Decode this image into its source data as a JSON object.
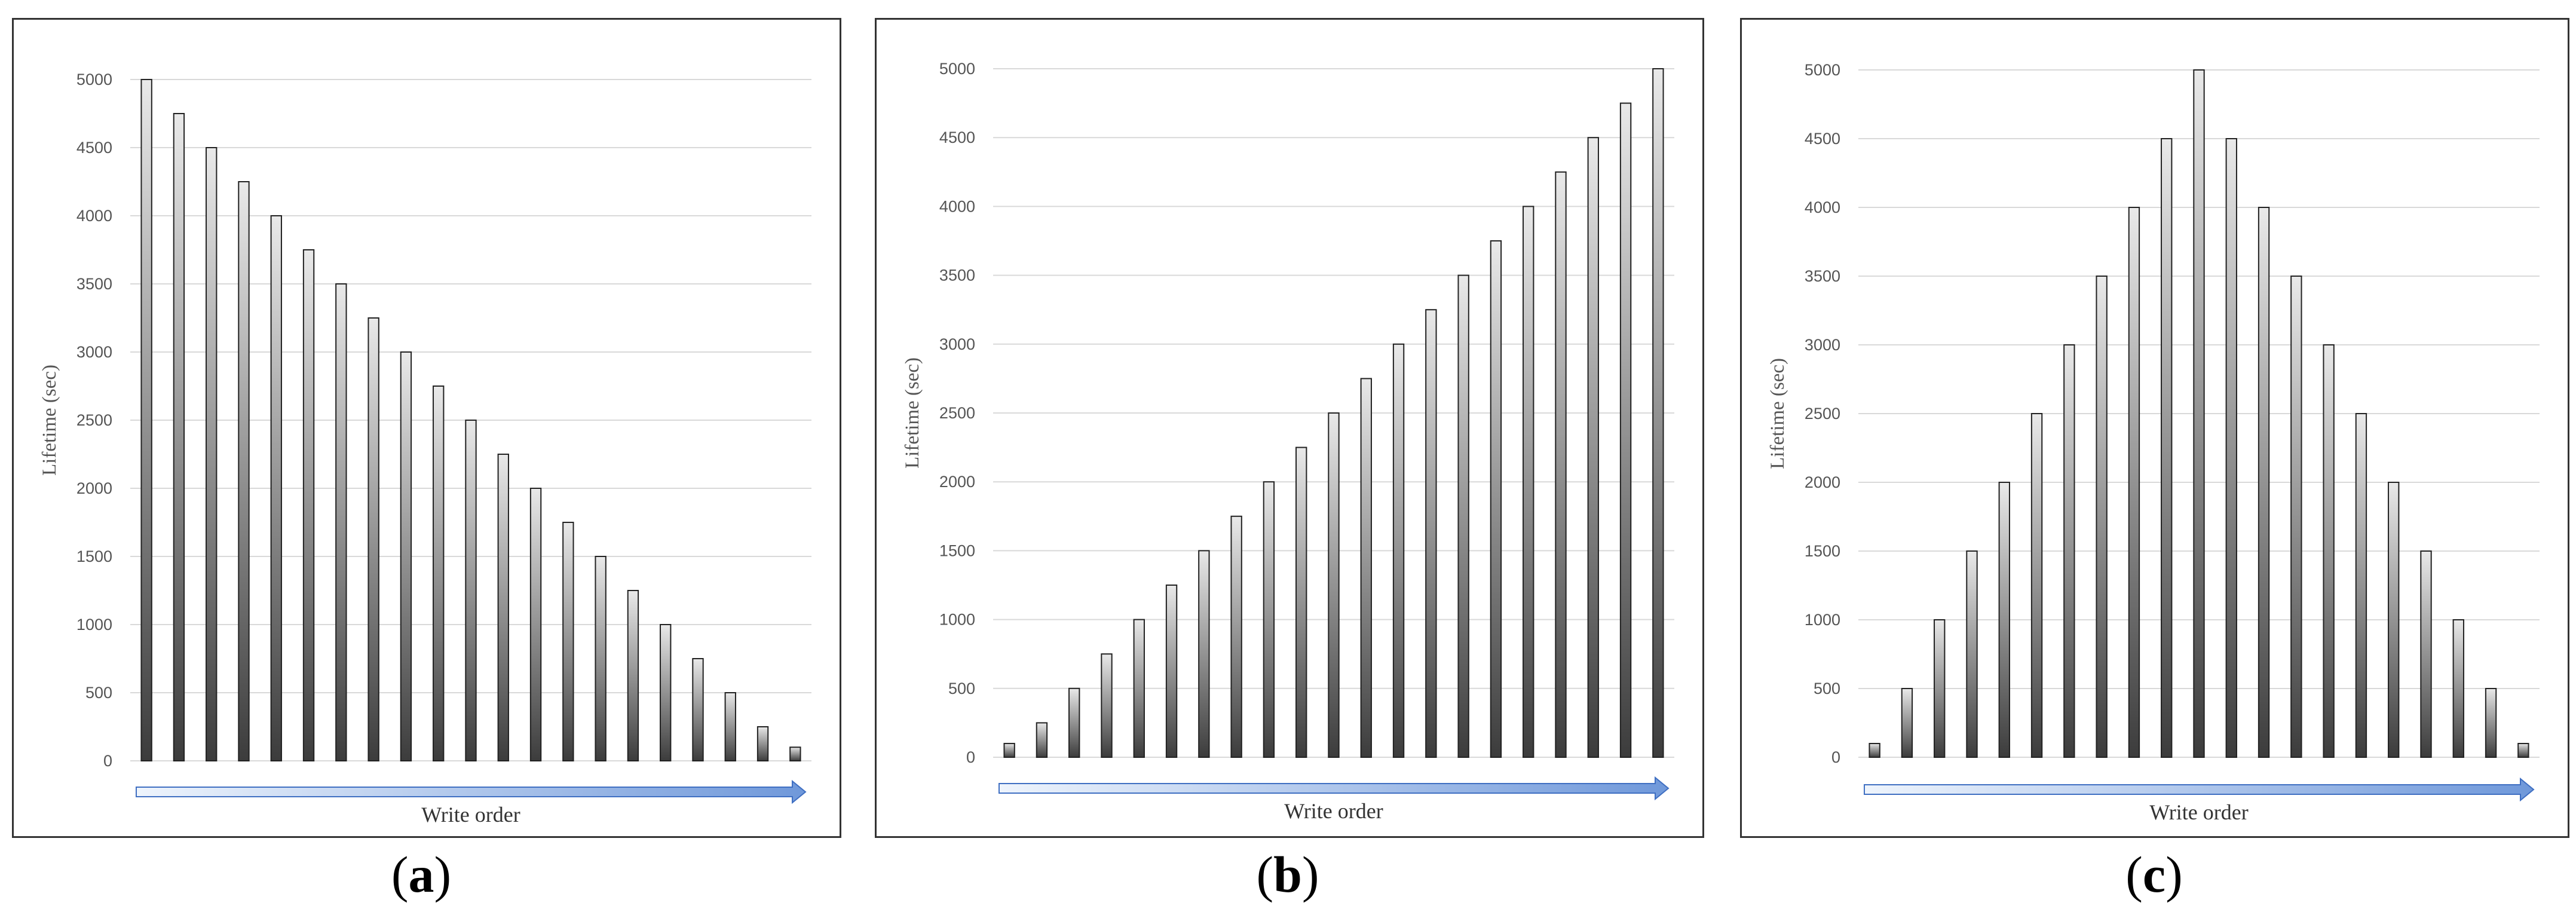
{
  "figure": {
    "colors": {
      "bar_top": "#e9e9e9",
      "bar_bottom": "#3c3c3c",
      "bar_stroke": "#222222",
      "grid": "#d9d9d9",
      "arrow_light": "#eef4fc",
      "arrow_dark": "#6f98da",
      "arrow_stroke": "#3f6fc2"
    },
    "panels": [
      {
        "open": "(",
        "letter": "a",
        "close": ")"
      },
      {
        "open": "(",
        "letter": "b",
        "close": ")"
      },
      {
        "open": "(",
        "letter": "c",
        "close": ")"
      }
    ]
  },
  "chart_data": [
    {
      "type": "bar",
      "ylabel": "Lifetime (sec)",
      "xlabel": "Write order",
      "ylim": [
        0,
        5000
      ],
      "yticks": [
        0,
        500,
        1000,
        1500,
        2000,
        2500,
        3000,
        3500,
        4000,
        4500,
        5000
      ],
      "grid": true,
      "values": [
        5000,
        4750,
        4500,
        4250,
        4000,
        3750,
        3500,
        3250,
        3000,
        2750,
        2500,
        2250,
        2000,
        1750,
        1500,
        1250,
        1000,
        750,
        500,
        250,
        100
      ]
    },
    {
      "type": "bar",
      "ylabel": "Lifetime (sec)",
      "xlabel": "Write order",
      "ylim": [
        0,
        5000
      ],
      "yticks": [
        0,
        500,
        1000,
        1500,
        2000,
        2500,
        3000,
        3500,
        4000,
        4500,
        5000
      ],
      "grid": true,
      "values": [
        100,
        250,
        500,
        750,
        1000,
        1250,
        1500,
        1750,
        2000,
        2250,
        2500,
        2750,
        3000,
        3250,
        3500,
        3750,
        4000,
        4250,
        4500,
        4750,
        5000
      ]
    },
    {
      "type": "bar",
      "ylabel": "Lifetime (sec)",
      "xlabel": "Write order",
      "ylim": [
        0,
        5000
      ],
      "yticks": [
        0,
        500,
        1000,
        1500,
        2000,
        2500,
        3000,
        3500,
        4000,
        4500,
        5000
      ],
      "grid": true,
      "values": [
        100,
        500,
        1000,
        1500,
        2000,
        2500,
        3000,
        3500,
        4000,
        4500,
        5000,
        4500,
        4000,
        3500,
        3000,
        2500,
        2000,
        1500,
        1000,
        500,
        100
      ]
    }
  ]
}
